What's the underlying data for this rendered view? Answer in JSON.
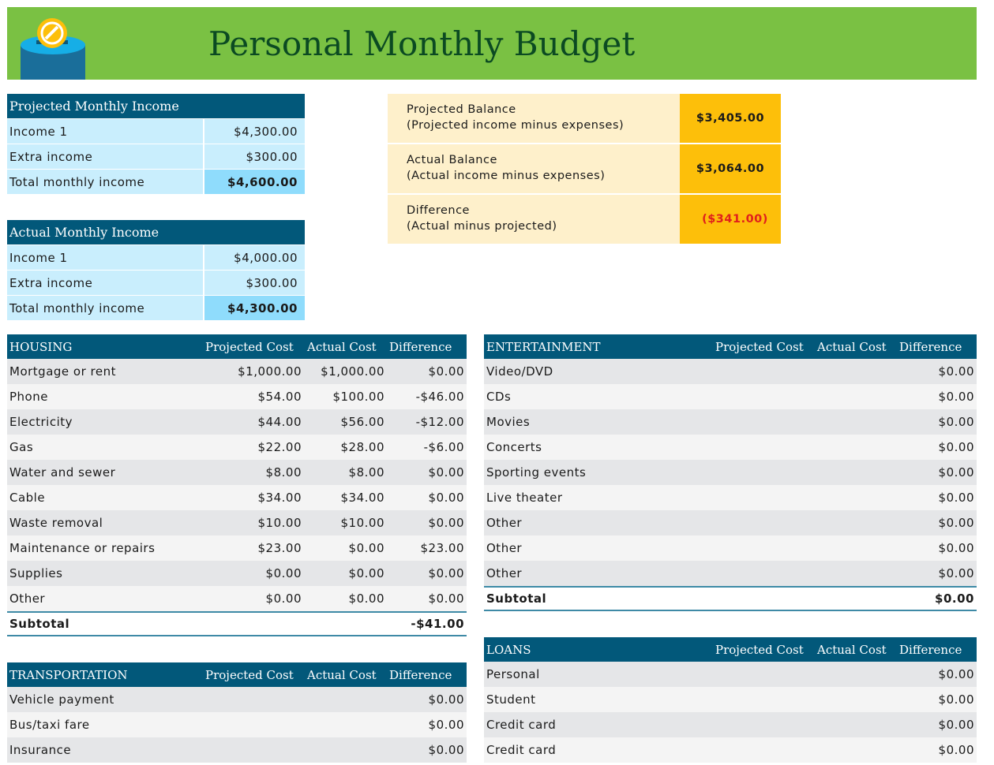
{
  "header": {
    "title": "Personal Monthly Budget",
    "logo": "piggy-bank-coin-icon"
  },
  "colors": {
    "banner": "#7ac143",
    "table_header": "#02587a",
    "income_row": "#c9eefd",
    "income_total": "#8fdcfc",
    "balance_label": "#fef0cb",
    "balance_value": "#fdbf0a",
    "negative": "#e0201c"
  },
  "projected_income": {
    "title": "Projected Monthly Income",
    "rows": [
      {
        "label": "Income 1",
        "value": "$4,300.00"
      },
      {
        "label": "Extra income",
        "value": "$300.00"
      },
      {
        "label": "Total monthly income",
        "value": "$4,600.00"
      }
    ]
  },
  "actual_income": {
    "title": "Actual Monthly Income",
    "rows": [
      {
        "label": "Income 1",
        "value": "$4,000.00"
      },
      {
        "label": "Extra income",
        "value": "$300.00"
      },
      {
        "label": "Total monthly income",
        "value": "$4,300.00"
      }
    ]
  },
  "balance": [
    {
      "label": "Projected Balance",
      "sub": "(Projected income minus expenses)",
      "value": "$3,405.00"
    },
    {
      "label": "Actual Balance",
      "sub": "(Actual income minus expenses)",
      "value": "$3,064.00"
    },
    {
      "label": "Difference",
      "sub": "(Actual minus projected)",
      "value": "($341.00)"
    }
  ],
  "columns": [
    "Projected Cost",
    "Actual Cost",
    "Difference"
  ],
  "housing": {
    "title": "HOUSING",
    "rows": [
      [
        "Mortgage or rent",
        "$1,000.00",
        "$1,000.00",
        "$0.00"
      ],
      [
        "Phone",
        "$54.00",
        "$100.00",
        "-$46.00"
      ],
      [
        "Electricity",
        "$44.00",
        "$56.00",
        "-$12.00"
      ],
      [
        "Gas",
        "$22.00",
        "$28.00",
        "-$6.00"
      ],
      [
        "Water and sewer",
        "$8.00",
        "$8.00",
        "$0.00"
      ],
      [
        "Cable",
        "$34.00",
        "$34.00",
        "$0.00"
      ],
      [
        "Waste removal",
        "$10.00",
        "$10.00",
        "$0.00"
      ],
      [
        "Maintenance or repairs",
        "$23.00",
        "$0.00",
        "$23.00"
      ],
      [
        "Supplies",
        "$0.00",
        "$0.00",
        "$0.00"
      ],
      [
        "Other",
        "$0.00",
        "$0.00",
        "$0.00"
      ]
    ],
    "subtotal": [
      "Subtotal",
      "",
      "",
      "-$41.00"
    ]
  },
  "entertainment": {
    "title": "ENTERTAINMENT",
    "rows": [
      [
        "Video/DVD",
        "",
        "",
        "$0.00"
      ],
      [
        "CDs",
        "",
        "",
        "$0.00"
      ],
      [
        "Movies",
        "",
        "",
        "$0.00"
      ],
      [
        "Concerts",
        "",
        "",
        "$0.00"
      ],
      [
        "Sporting events",
        "",
        "",
        "$0.00"
      ],
      [
        "Live theater",
        "",
        "",
        "$0.00"
      ],
      [
        "Other",
        "",
        "",
        "$0.00"
      ],
      [
        "Other",
        "",
        "",
        "$0.00"
      ],
      [
        "Other",
        "",
        "",
        "$0.00"
      ]
    ],
    "subtotal": [
      "Subtotal",
      "",
      "",
      "$0.00"
    ]
  },
  "transportation": {
    "title": "TRANSPORTATION",
    "rows": [
      [
        "Vehicle payment",
        "",
        "",
        "$0.00"
      ],
      [
        "Bus/taxi fare",
        "",
        "",
        "$0.00"
      ],
      [
        "Insurance",
        "",
        "",
        "$0.00"
      ]
    ]
  },
  "loans": {
    "title": "LOANS",
    "rows": [
      [
        "Personal",
        "",
        "",
        "$0.00"
      ],
      [
        "Student",
        "",
        "",
        "$0.00"
      ],
      [
        "Credit card",
        "",
        "",
        "$0.00"
      ],
      [
        "Credit card",
        "",
        "",
        "$0.00"
      ]
    ]
  }
}
